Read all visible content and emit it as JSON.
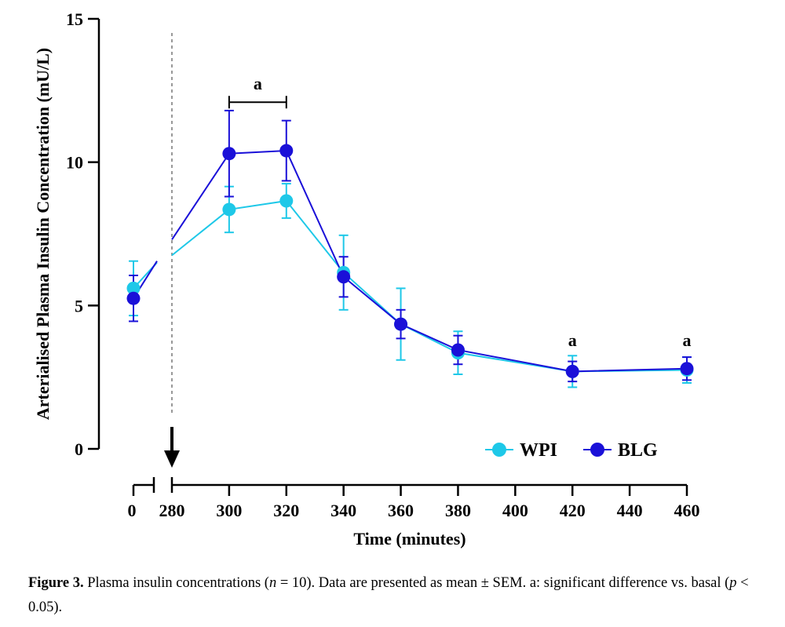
{
  "chart_data": {
    "type": "line",
    "xlabel": "Time (minutes)",
    "ylabel": "Arterialised Plasma Insulin Concentration (mU/L)",
    "ylim": [
      0,
      15
    ],
    "yticks": [
      "0",
      "5",
      "10",
      "15"
    ],
    "xticks": [
      "0",
      "280",
      "300",
      "320",
      "340",
      "360",
      "380",
      "400",
      "420",
      "440",
      "460"
    ],
    "x_axis_break": "between 0 and 280",
    "legend_position": "bottom-right",
    "x": [
      0,
      300,
      320,
      340,
      360,
      380,
      420,
      460
    ],
    "series": [
      {
        "name": "WPI",
        "color": "#1ec8e8",
        "values": [
          5.6,
          8.35,
          8.65,
          6.15,
          4.35,
          3.35,
          2.7,
          2.75
        ],
        "sem": [
          0.95,
          0.8,
          0.6,
          1.3,
          1.25,
          0.75,
          0.55,
          0.45
        ]
      },
      {
        "name": "BLG",
        "color": "#1a10d8",
        "values": [
          5.25,
          10.3,
          10.4,
          6.0,
          4.35,
          3.45,
          2.7,
          2.8
        ],
        "sem": [
          0.8,
          1.5,
          1.05,
          0.7,
          0.5,
          0.5,
          0.35,
          0.4
        ]
      }
    ],
    "interpolation_extension": {
      "WPI": {
        "y_at_pre_break": 6.5,
        "y_at_280": 6.75
      },
      "BLG": {
        "y_at_pre_break": 6.55,
        "y_at_280": 7.3
      }
    },
    "dosing_marker_x": 280,
    "annotations": [
      {
        "text": "a",
        "x_start": 300,
        "x_end": 320,
        "y": 12.75
      },
      {
        "text": "a",
        "x": 420,
        "y": 3.8
      },
      {
        "text": "a",
        "x": 460,
        "y": 3.8
      }
    ]
  },
  "caption": {
    "label": "Figure 3.",
    "text_1": " Plasma insulin concentrations (",
    "n": "n",
    "text_2": " = 10). Data are presented as mean ± SEM. a: significant difference vs. basal (",
    "p": "p",
    "text_3": " < 0.05)."
  }
}
